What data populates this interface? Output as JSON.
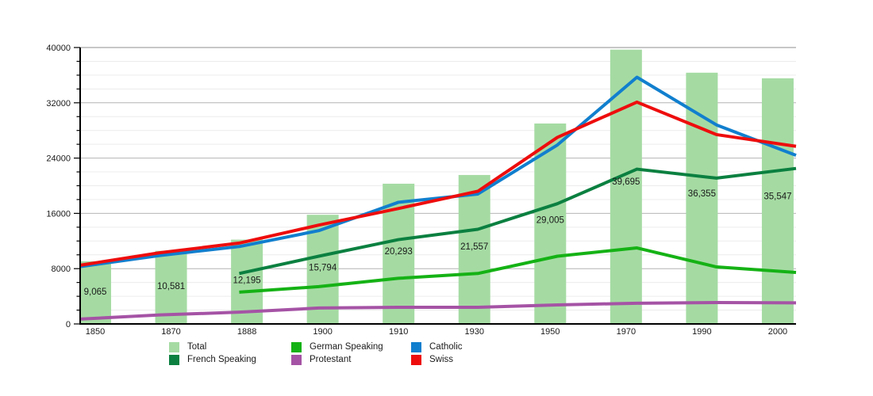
{
  "chart_data": {
    "type": "combo-bar-line",
    "title": "",
    "categories": [
      "1850",
      "1870",
      "1888",
      "1900",
      "1910",
      "1930",
      "1950",
      "1970",
      "1990",
      "2000"
    ],
    "bars": {
      "name": "Total",
      "color": "#a5dba3",
      "values": [
        9065,
        10581,
        12195,
        15794,
        20293,
        21557,
        29005,
        39695,
        36355,
        35547
      ],
      "labels": [
        "9,065",
        "10,581",
        "12,195",
        "15,794",
        "20,293",
        "21,557",
        "29,005",
        "39,695",
        "36,355",
        "35,547"
      ]
    },
    "lines": [
      {
        "name": "Protestant",
        "color": "#a553a5",
        "values": [
          700,
          1300,
          1700,
          2300,
          2400,
          2400,
          2750,
          3000,
          3100,
          3050
        ]
      },
      {
        "name": "German Speaking",
        "color": "#15b215",
        "values": [
          null,
          null,
          4600,
          5400,
          6600,
          7300,
          9800,
          11000,
          8250,
          7450
        ]
      },
      {
        "name": "French Speaking",
        "color": "#0b8040",
        "values": [
          null,
          null,
          7300,
          9800,
          12200,
          13700,
          17400,
          22400,
          21100,
          22500
        ]
      },
      {
        "name": "Catholic",
        "color": "#117fce",
        "values": [
          8300,
          9900,
          11200,
          13500,
          17600,
          18800,
          25900,
          35700,
          28800,
          24400
        ]
      },
      {
        "name": "Swiss",
        "color": "#ee0d0d",
        "values": [
          8500,
          10300,
          11700,
          14300,
          16700,
          19200,
          27000,
          32100,
          27400,
          25700
        ]
      }
    ],
    "y_axis": {
      "min": 0,
      "max": 40000,
      "major_step": 8000,
      "minor_step": 2000,
      "tick_labels": [
        "0",
        "8000",
        "16000",
        "24000",
        "32000",
        "40000"
      ]
    },
    "grid": true,
    "legend": {
      "position": "bottom",
      "items": [
        {
          "label": "Total",
          "color": "#a5dba3"
        },
        {
          "label": "German Speaking",
          "color": "#15b215"
        },
        {
          "label": "Catholic",
          "color": "#117fce"
        },
        {
          "label": "French Speaking",
          "color": "#0b8040"
        },
        {
          "label": "Protestant",
          "color": "#a553a5"
        },
        {
          "label": "Swiss",
          "color": "#ee0d0d"
        }
      ]
    }
  }
}
